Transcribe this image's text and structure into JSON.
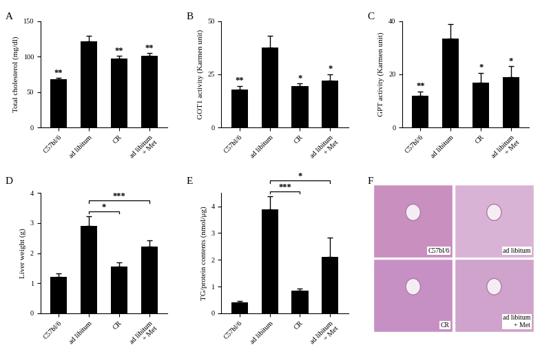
{
  "chart_data": [
    {
      "panel": "A",
      "type": "bar",
      "ylabel": "Total cholesterol (mg/dl)",
      "categories": [
        "C57bl/6",
        "ad libitum",
        "CR",
        "ad libitum\n+ Met"
      ],
      "values": [
        68,
        122,
        97,
        101
      ],
      "errors": [
        2,
        7,
        4,
        4
      ],
      "significance": [
        "**",
        null,
        "**",
        "**"
      ],
      "color": "#000000",
      "ylim": [
        0,
        150
      ],
      "yticks": [
        0,
        50,
        100,
        150
      ]
    },
    {
      "panel": "B",
      "type": "bar",
      "ylabel": "GOT1 activity (Karmen unit)",
      "categories": [
        "C57bl/6",
        "ad libitum",
        "CR",
        "ad libitum\n+ Met"
      ],
      "values": [
        18,
        37.5,
        19.5,
        22
      ],
      "errors": [
        1.5,
        5.5,
        1.2,
        3
      ],
      "significance": [
        "**",
        null,
        "*",
        "*"
      ],
      "color": "#000000",
      "ylim": [
        0,
        50
      ],
      "yticks": [
        0,
        25,
        50
      ]
    },
    {
      "panel": "C",
      "type": "bar",
      "ylabel": "GPT activity (Karmen unit)",
      "categories": [
        "C57bl/6",
        "ad libitum",
        "CR",
        "ad libitum\n+ Met"
      ],
      "values": [
        12,
        33.5,
        17,
        19
      ],
      "errors": [
        1.5,
        5.5,
        3.5,
        4
      ],
      "significance": [
        "**",
        null,
        "*",
        "*"
      ],
      "color": "#000000",
      "ylim": [
        0,
        40
      ],
      "yticks": [
        0,
        20,
        40
      ]
    },
    {
      "panel": "D",
      "type": "bar",
      "ylabel": "Liver weight (g)",
      "categories": [
        "C57bl/6",
        "ad libitum",
        "CR",
        "ad libitum\n+ Met"
      ],
      "values": [
        1.2,
        2.9,
        1.55,
        2.22
      ],
      "errors": [
        0.12,
        0.33,
        0.15,
        0.2
      ],
      "comparisons": [
        {
          "from": "ad libitum",
          "to": "CR",
          "label": "*"
        },
        {
          "from": "ad libitum",
          "to": "ad libitum\n+ Met",
          "label": "***"
        }
      ],
      "color": "#000000",
      "ylim": [
        0,
        4
      ],
      "yticks": [
        0,
        1,
        2,
        3,
        4
      ]
    },
    {
      "panel": "E",
      "type": "bar",
      "ylabel": "TG/protein contents (nmol/μg)",
      "categories": [
        "C57bl/6",
        "ad libitum",
        "CR",
        "ad libitum\n+ Met"
      ],
      "values": [
        0.42,
        3.88,
        0.85,
        2.12
      ],
      "errors": [
        0.05,
        0.5,
        0.07,
        0.7
      ],
      "comparisons": [
        {
          "from": "ad libitum",
          "to": "CR",
          "label": "***"
        },
        {
          "from": "ad libitum",
          "to": "ad libitum\n+ Met",
          "label": "*"
        }
      ],
      "color": "#000000",
      "ylim": [
        0,
        4.5
      ],
      "yticks": [
        0,
        1,
        2,
        3,
        4
      ]
    },
    {
      "panel": "F",
      "type": "image",
      "labels": [
        "C57bl/6",
        "ad libitum",
        "CR",
        "ad libitum\n+ Met"
      ]
    }
  ]
}
